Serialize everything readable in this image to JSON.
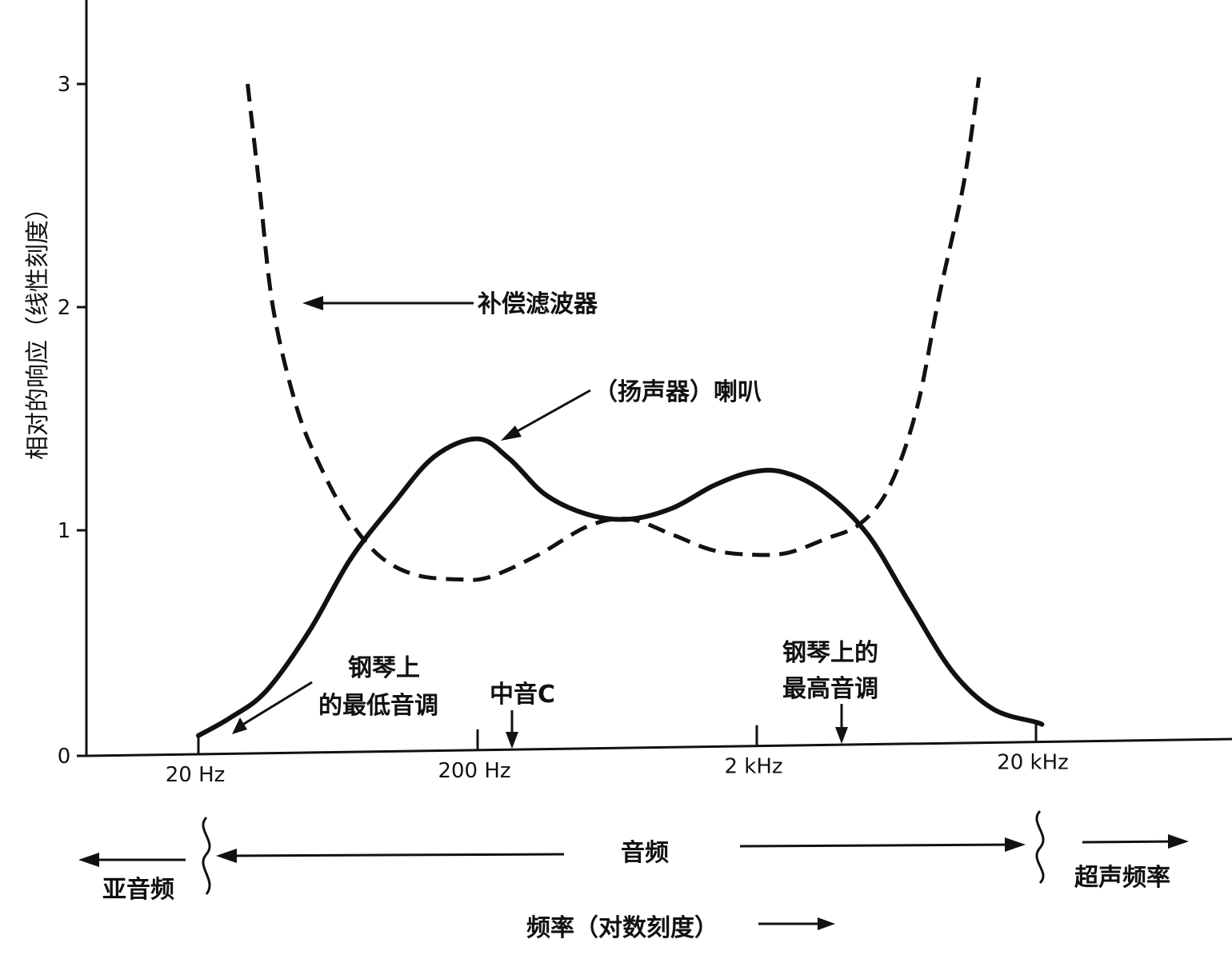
{
  "chart_data": {
    "type": "line",
    "title": "",
    "xlabel": "频率（对数刻度）",
    "ylabel": "相对的响应（线性刻度）",
    "x_scale": "log",
    "x_ticks": [
      {
        "value": 20,
        "label": "20 Hz"
      },
      {
        "value": 200,
        "label": "200 Hz"
      },
      {
        "value": 2000,
        "label": "2 kHz"
      },
      {
        "value": 20000,
        "label": "20 kHz"
      }
    ],
    "y_ticks": [
      {
        "value": 0,
        "label": "0"
      },
      {
        "value": 1,
        "label": "1"
      },
      {
        "value": 2,
        "label": "2"
      },
      {
        "value": 3,
        "label": "3"
      }
    ],
    "ylim": [
      0,
      3.3
    ],
    "xlim": [
      10,
      50000
    ],
    "grid": false,
    "series": [
      {
        "name": "（扬声器）喇叭",
        "style": "solid",
        "points": [
          [
            20,
            0.08
          ],
          [
            26,
            0.16
          ],
          [
            35,
            0.28
          ],
          [
            50,
            0.55
          ],
          [
            70,
            0.87
          ],
          [
            100,
            1.12
          ],
          [
            140,
            1.33
          ],
          [
            200,
            1.41
          ],
          [
            260,
            1.32
          ],
          [
            350,
            1.16
          ],
          [
            500,
            1.07
          ],
          [
            700,
            1.05
          ],
          [
            1000,
            1.1
          ],
          [
            1400,
            1.2
          ],
          [
            1900,
            1.26
          ],
          [
            2500,
            1.26
          ],
          [
            3500,
            1.17
          ],
          [
            5000,
            0.98
          ],
          [
            7000,
            0.68
          ],
          [
            10000,
            0.37
          ],
          [
            14000,
            0.2
          ],
          [
            20000,
            0.14
          ],
          [
            21000,
            0.13
          ]
        ]
      },
      {
        "name": "补偿滤波器",
        "style": "dashed",
        "points": [
          [
            30,
            3.0
          ],
          [
            33,
            2.55
          ],
          [
            37,
            2.0
          ],
          [
            45,
            1.55
          ],
          [
            55,
            1.28
          ],
          [
            70,
            1.04
          ],
          [
            90,
            0.88
          ],
          [
            120,
            0.8
          ],
          [
            170,
            0.78
          ],
          [
            220,
            0.79
          ],
          [
            330,
            0.89
          ],
          [
            500,
            1.02
          ],
          [
            700,
            1.05
          ],
          [
            1000,
            0.98
          ],
          [
            1400,
            0.91
          ],
          [
            2000,
            0.89
          ],
          [
            2600,
            0.9
          ],
          [
            3500,
            0.96
          ],
          [
            4700,
            1.03
          ],
          [
            6000,
            1.2
          ],
          [
            7500,
            1.55
          ],
          [
            9000,
            2.05
          ],
          [
            11000,
            2.55
          ],
          [
            12500,
            3.03
          ]
        ]
      }
    ],
    "annotations": {
      "filter": "补偿滤波器",
      "speaker": "（扬声器）喇叭",
      "lowest_note": {
        "line1": "钢琴上",
        "line2": "的最低音调",
        "freq": 27.5
      },
      "middle_c": {
        "text": "中音C",
        "freq": 262
      },
      "highest_note": {
        "line1": "钢琴上的",
        "line2": "最高音调",
        "freq": 4186
      }
    },
    "bands": {
      "infrasonic": "亚音频",
      "audio": "音频",
      "ultrasonic": "超声频率"
    }
  }
}
